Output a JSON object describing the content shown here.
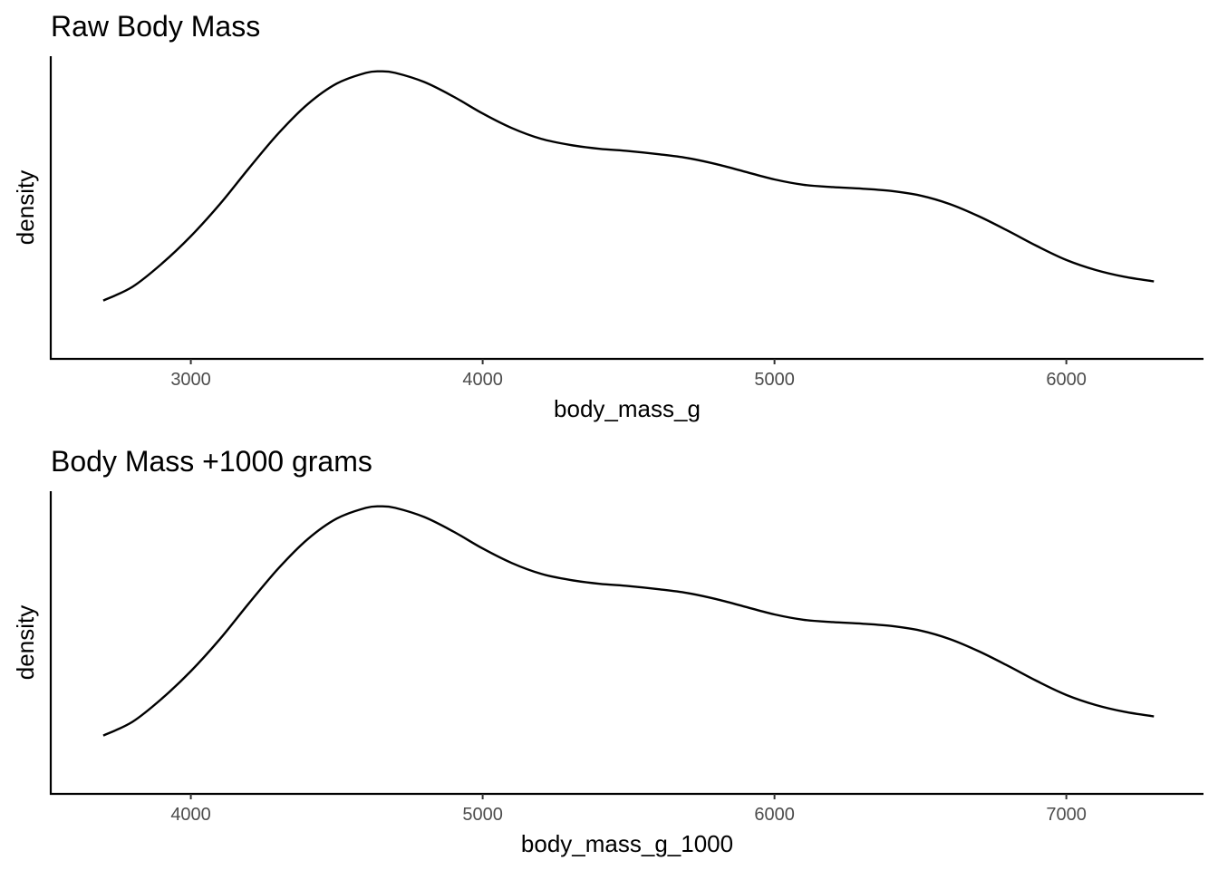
{
  "chart_data": [
    {
      "type": "line",
      "title": "Raw Body Mass",
      "xlabel": "body_mass_g",
      "ylabel": "density",
      "xlim": [
        2520,
        6470
      ],
      "xticks": [
        3000,
        4000,
        5000,
        6000
      ],
      "xtick_labels": [
        "3000",
        "4000",
        "5000",
        "6000"
      ],
      "y_tick_labels_shown": false,
      "grid": false,
      "series": [
        {
          "x": [
            2700,
            2800,
            2900,
            3000,
            3100,
            3200,
            3300,
            3400,
            3500,
            3600,
            3650,
            3700,
            3800,
            3900,
            4000,
            4100,
            4200,
            4300,
            4400,
            4500,
            4600,
            4700,
            4800,
            4900,
            5000,
            5100,
            5200,
            5300,
            5400,
            5500,
            5600,
            5700,
            5800,
            5900,
            6000,
            6100,
            6200,
            6300
          ],
          "y": [
            8.6e-05,
            0.000104,
            0.000134,
            0.00017,
            0.000212,
            0.000259,
            0.000304,
            0.000342,
            0.000369,
            0.000383,
            0.000385,
            0.000383,
            0.000371,
            0.000352,
            0.00033,
            0.000311,
            0.000297,
            0.000289,
            0.000284,
            0.000281,
            0.000277,
            0.000272,
            0.000264,
            0.000254,
            0.000244,
            0.000237,
            0.000234,
            0.000232,
            0.000229,
            0.000223,
            0.000212,
            0.000196,
            0.000177,
            0.000157,
            0.000139,
            0.000126,
            0.000117,
            0.000111
          ]
        }
      ]
    },
    {
      "type": "line",
      "title": "Body Mass +1000 grams",
      "xlabel": "body_mass_g_1000",
      "ylabel": "density",
      "xlim": [
        3520,
        7470
      ],
      "xticks": [
        4000,
        5000,
        6000,
        7000
      ],
      "xtick_labels": [
        "4000",
        "5000",
        "6000",
        "7000"
      ],
      "y_tick_labels_shown": false,
      "grid": false,
      "series": [
        {
          "x": [
            3700,
            3800,
            3900,
            4000,
            4100,
            4200,
            4300,
            4400,
            4500,
            4600,
            4650,
            4700,
            4800,
            4900,
            5000,
            5100,
            5200,
            5300,
            5400,
            5500,
            5600,
            5700,
            5800,
            5900,
            6000,
            6100,
            6200,
            6300,
            6400,
            6500,
            6600,
            6700,
            6800,
            6900,
            7000,
            7100,
            7200,
            7300
          ],
          "y": [
            8.6e-05,
            0.000104,
            0.000134,
            0.00017,
            0.000212,
            0.000259,
            0.000304,
            0.000342,
            0.000369,
            0.000383,
            0.000385,
            0.000383,
            0.000371,
            0.000352,
            0.00033,
            0.000311,
            0.000297,
            0.000289,
            0.000284,
            0.000281,
            0.000277,
            0.000272,
            0.000264,
            0.000254,
            0.000244,
            0.000237,
            0.000234,
            0.000232,
            0.000229,
            0.000223,
            0.000212,
            0.000196,
            0.000177,
            0.000157,
            0.000139,
            0.000126,
            0.000117,
            0.000111
          ]
        }
      ]
    }
  ]
}
